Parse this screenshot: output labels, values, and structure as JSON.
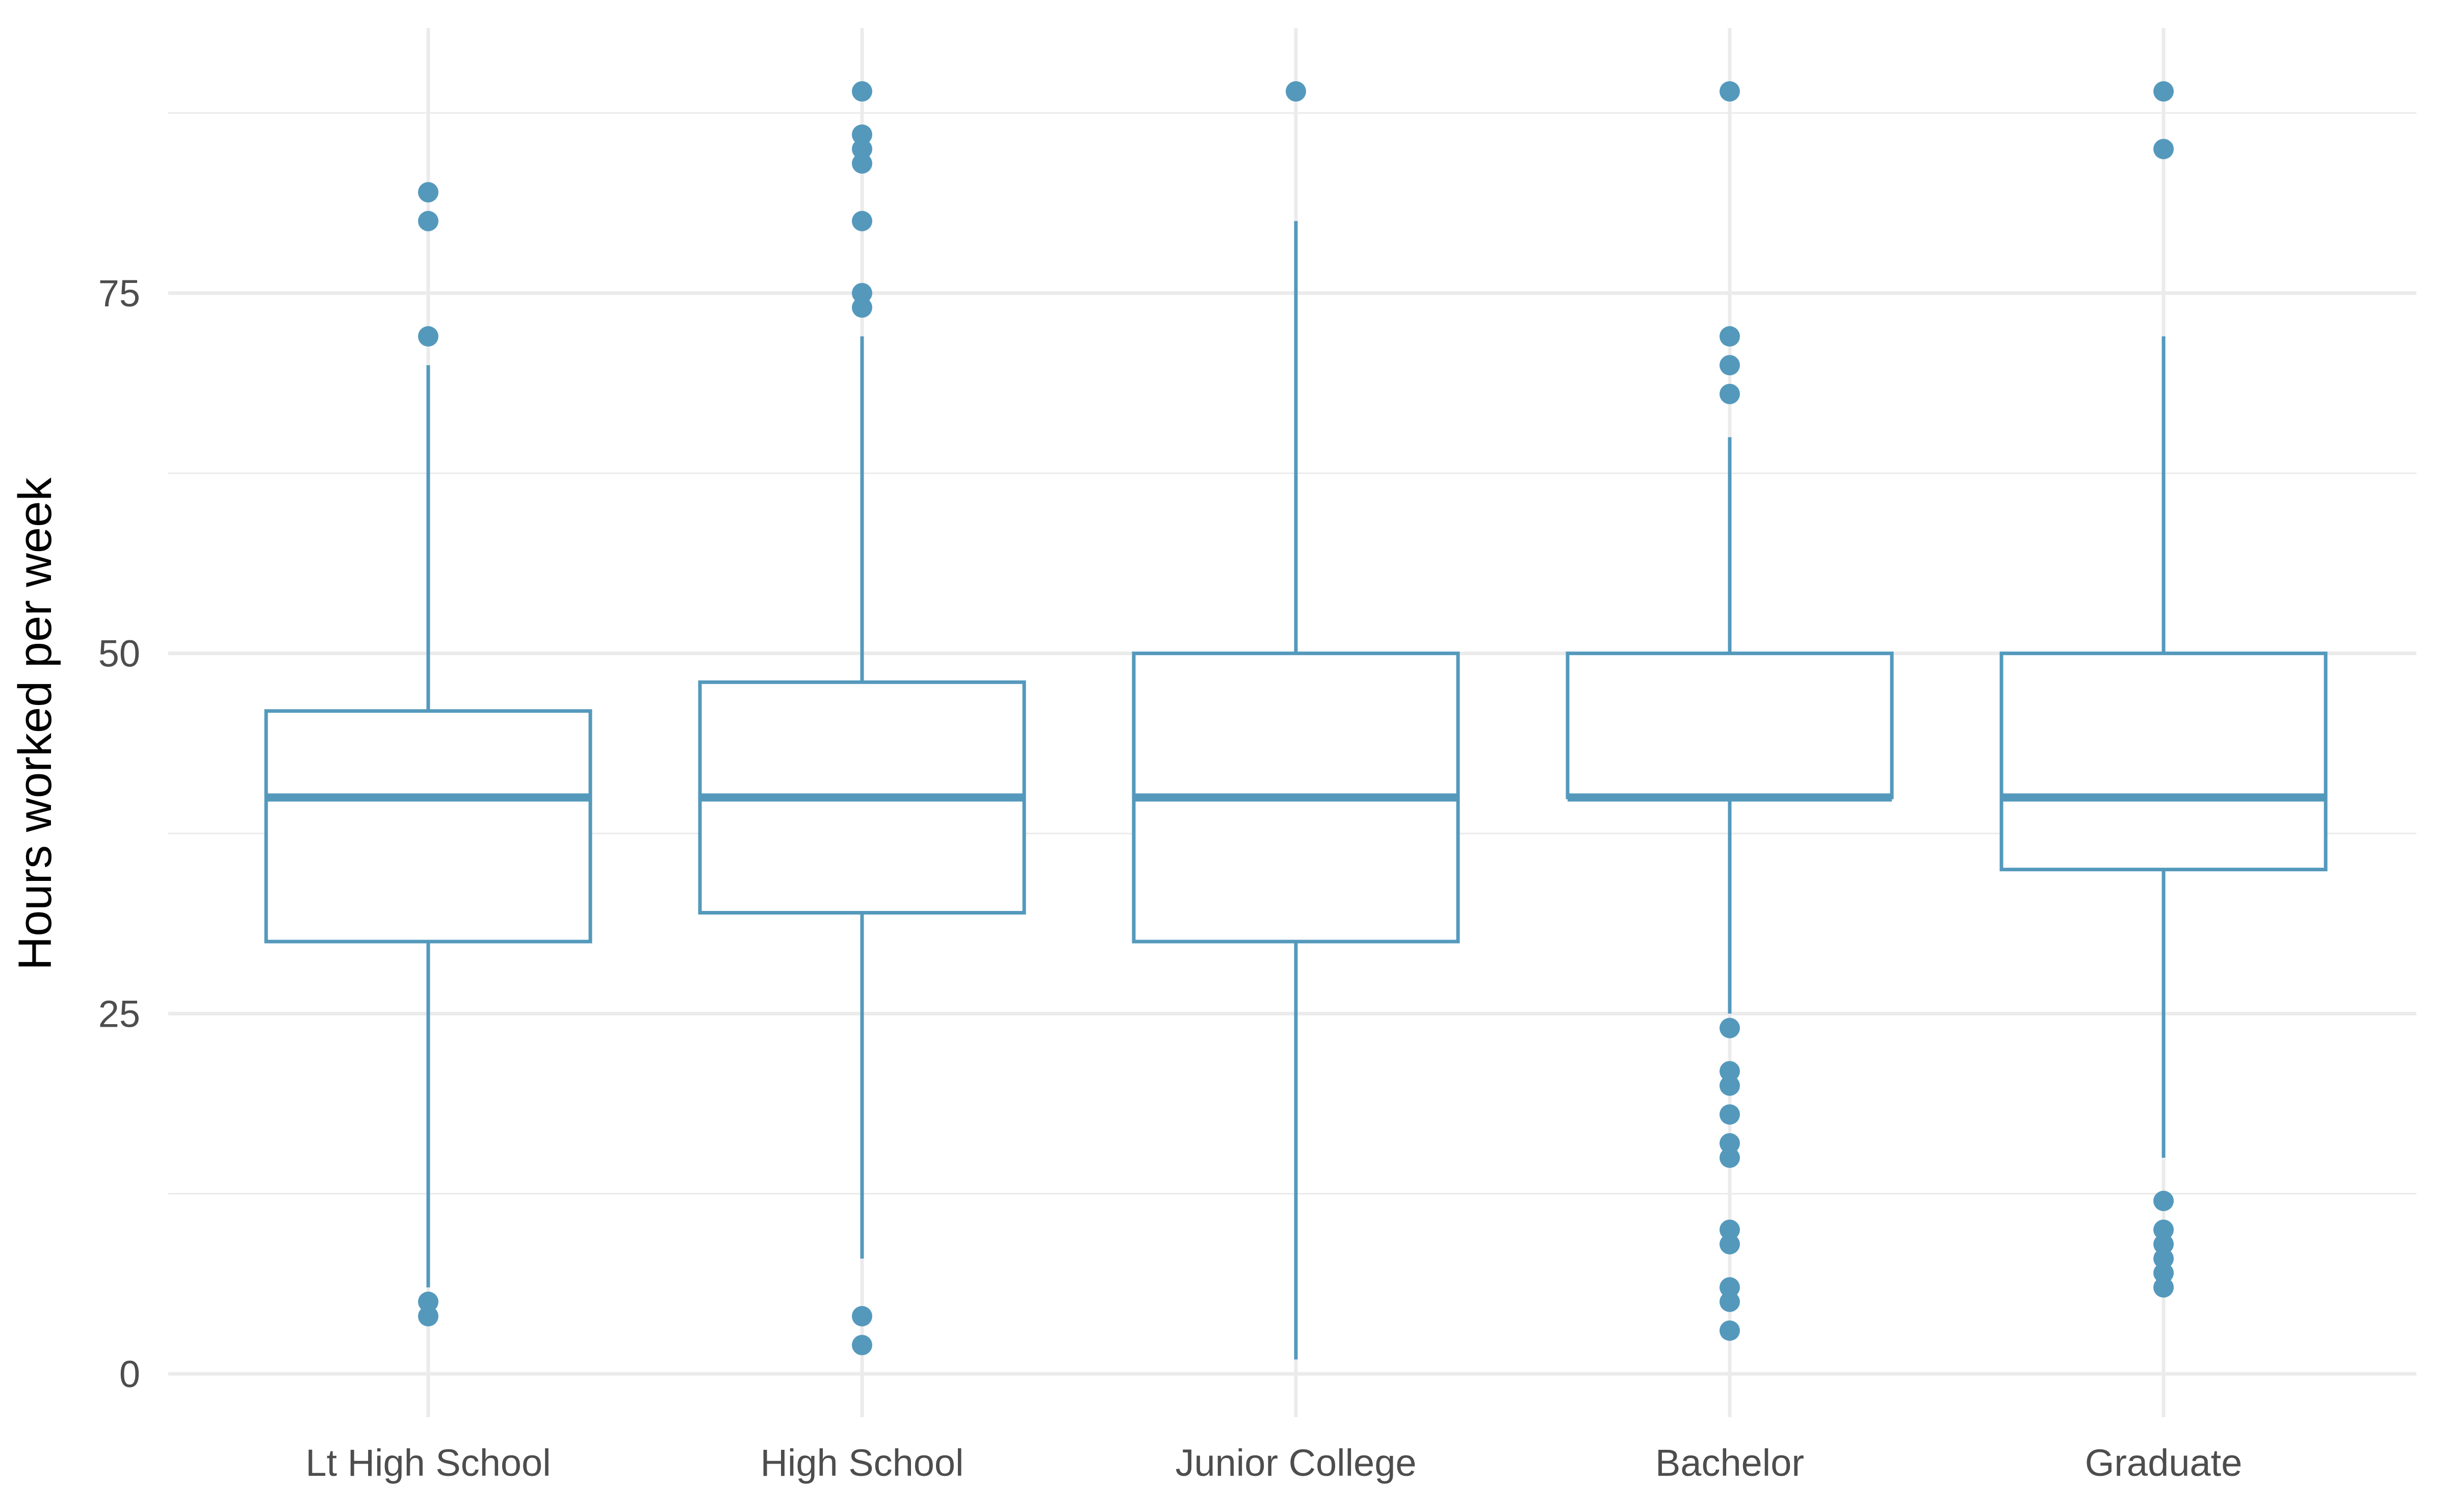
{
  "chart_data": {
    "type": "box",
    "title": "",
    "xlabel": "",
    "ylabel": "Hours worked per week",
    "ylim": [
      -2.5,
      94
    ],
    "yticks": [
      0,
      25,
      50,
      75
    ],
    "grid": true,
    "color": "#5499BC",
    "categories": [
      "Lt High School",
      "High School",
      "Junior College",
      "Bachelor",
      "Graduate"
    ],
    "boxes": [
      {
        "category": "Lt High School",
        "whisker_low": 6,
        "q1": 30,
        "median": 40,
        "q3": 46,
        "whisker_high": 70,
        "outliers": [
          4,
          5,
          72,
          80,
          82
        ]
      },
      {
        "category": "High School",
        "whisker_low": 8,
        "q1": 32,
        "median": 40,
        "q3": 48,
        "whisker_high": 72,
        "outliers": [
          2,
          4,
          74,
          75,
          80,
          84,
          85,
          86,
          89
        ]
      },
      {
        "category": "Junior College",
        "whisker_low": 1,
        "q1": 30,
        "median": 40,
        "q3": 50,
        "whisker_high": 80,
        "outliers": [
          89
        ]
      },
      {
        "category": "Bachelor",
        "whisker_low": 25,
        "q1": 40,
        "median": 40,
        "q3": 50,
        "whisker_high": 65,
        "outliers": [
          3,
          5,
          6,
          9,
          10,
          15,
          16,
          18,
          20,
          21,
          24,
          68,
          70,
          72,
          89
        ]
      },
      {
        "category": "Graduate",
        "whisker_low": 15,
        "q1": 35,
        "median": 40,
        "q3": 50,
        "whisker_high": 72,
        "outliers": [
          6,
          7,
          8,
          9,
          10,
          12,
          85,
          89
        ]
      }
    ]
  }
}
